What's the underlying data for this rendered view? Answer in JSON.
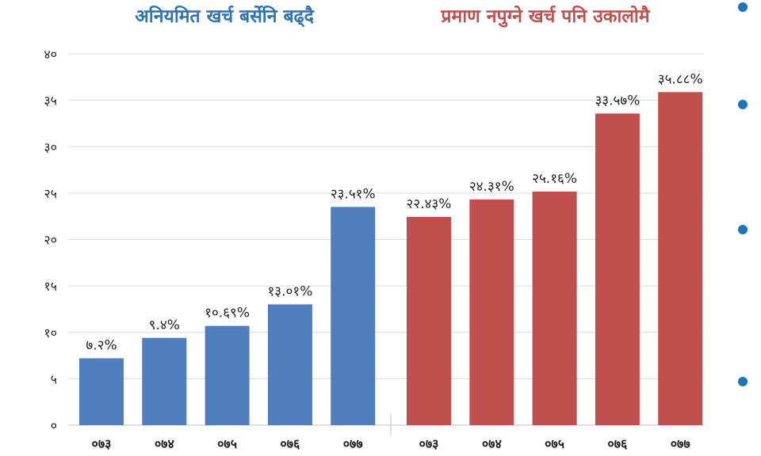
{
  "colors": {
    "blue": "#4F7FBE",
    "red": "#C0504D",
    "title_blue": "#2E74B5",
    "title_red": "#C0504D",
    "grid": "#D9D9D9",
    "dot": "#1B75BC"
  },
  "chart_data": {
    "type": "bar",
    "title_left": "अनियमित खर्च बर्सेनि बढ्दै",
    "title_right": "प्रमाण नपुग्ने खर्च पनि उकालोमै",
    "ylim": [
      0,
      40
    ],
    "yticks": [
      0,
      5,
      10,
      15,
      20,
      25,
      30,
      35,
      40
    ],
    "ytick_labels": [
      "०",
      "५",
      "१०",
      "१५",
      "२०",
      "२५",
      "३०",
      "३५",
      "४०"
    ],
    "grid": true,
    "series": [
      {
        "name": "",
        "color": "#4F7FBE",
        "categories": [
          "०७३",
          "०७४",
          "०७५",
          "०७६",
          "०७७"
        ],
        "values": [
          7.2,
          9.4,
          10.69,
          13.01,
          23.51
        ],
        "labels": [
          "७.२%",
          "९.४%",
          "१०.६९%",
          "१३.०१%",
          "२३.५१%"
        ]
      },
      {
        "name": "",
        "color": "#C0504D",
        "categories": [
          "०७३",
          "०७४",
          "०७५",
          "०७६",
          "०७७"
        ],
        "values": [
          22.43,
          24.31,
          25.16,
          33.57,
          35.88
        ],
        "labels": [
          "२२.४३%",
          "२४.३१%",
          "२५.१६%",
          "३३.५७%",
          "३५.८८%"
        ]
      }
    ]
  }
}
